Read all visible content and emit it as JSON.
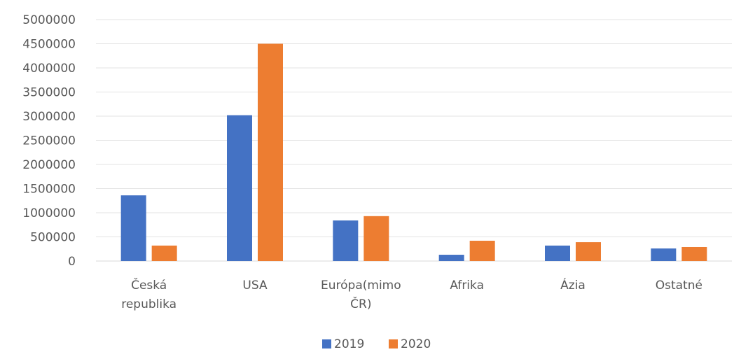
{
  "chart_data": {
    "type": "bar",
    "categories": [
      [
        "Česká",
        "republika"
      ],
      [
        "USA"
      ],
      [
        "Európa(mimo",
        "ČR)"
      ],
      [
        "Afrika"
      ],
      [
        "Ázia"
      ],
      [
        "Ostatné"
      ]
    ],
    "series": [
      {
        "name": "2019",
        "color": "#4472C4",
        "values": [
          1360000,
          3020000,
          840000,
          130000,
          320000,
          260000
        ]
      },
      {
        "name": "2020",
        "color": "#ED7D31",
        "values": [
          320000,
          4500000,
          930000,
          420000,
          390000,
          290000
        ]
      }
    ],
    "ylim": [
      0,
      5000000
    ],
    "yticks": [
      "0",
      "500000",
      "1000000",
      "1500000",
      "2000000",
      "2500000",
      "3000000",
      "3500000",
      "4000000",
      "4500000",
      "5000000"
    ],
    "grid": true,
    "legend_position": "bottom",
    "title": "",
    "xlabel": "",
    "ylabel": ""
  }
}
